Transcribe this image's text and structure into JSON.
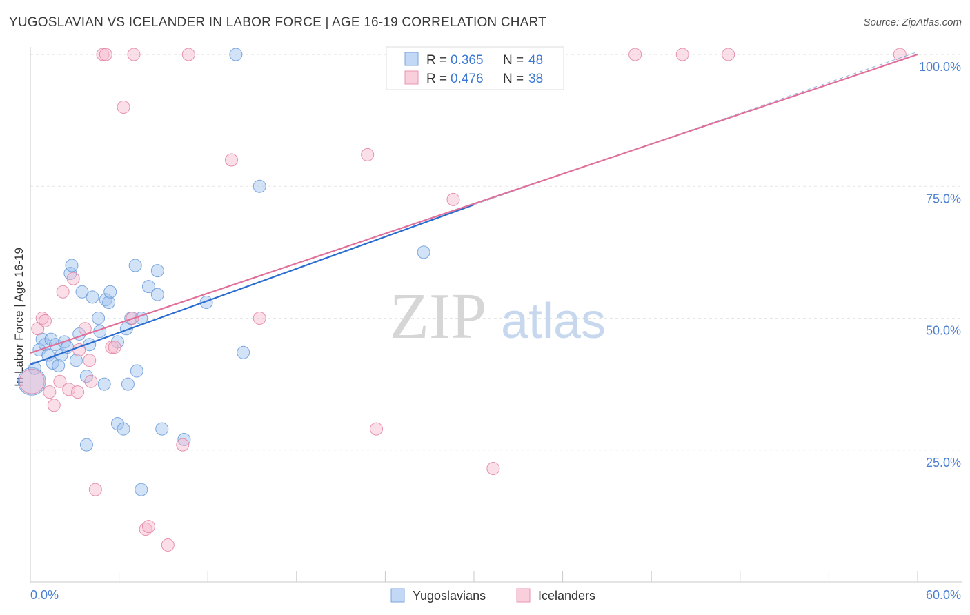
{
  "title": "YUGOSLAVIAN VS ICELANDER IN LABOR FORCE | AGE 16-19 CORRELATION CHART",
  "source": "Source: ZipAtlas.com",
  "watermark": {
    "zip": "ZIP",
    "atlas": "atlas"
  },
  "colors": {
    "blue": "#9ec2ee",
    "blue_stroke": "#5f93d8",
    "blue_line": "#2a6ccf",
    "pink": "#f6b8cc",
    "pink_stroke": "#e07a9b",
    "pink_line": "#e0709a",
    "tick_label": "#4a7fd0"
  },
  "chart_data": {
    "type": "scatter",
    "title": "YUGOSLAVIAN VS ICELANDER IN LABOR FORCE | AGE 16-19 CORRELATION CHART",
    "xlabel": "",
    "ylabel": "In Labor Force | Age 16-19",
    "xlim": [
      0,
      60
    ],
    "ylim": [
      0,
      102
    ],
    "x_tick_labels": [
      "0.0%",
      "60.0%"
    ],
    "y_ticks": [
      25,
      50,
      75,
      100
    ],
    "y_tick_labels": [
      "25.0%",
      "50.0%",
      "75.0%",
      "100.0%"
    ],
    "grid": true,
    "legend": {
      "placement": "top-center",
      "entries": [
        {
          "r_label": "R = ",
          "r_value": "0.365",
          "n_label": "N = ",
          "n_value": "48"
        },
        {
          "r_label": "R = ",
          "r_value": "0.476",
          "n_label": "N = ",
          "n_value": "38"
        }
      ]
    },
    "bottom_legend": [
      "Yugoslavians",
      "Icelanders"
    ],
    "series": [
      {
        "name": "Yugoslavians",
        "trend": {
          "x0": 0,
          "y0": 41.2,
          "x1": 30,
          "y1": 71.5
        },
        "points": [
          [
            0.1,
            38,
            20
          ],
          [
            0.3,
            40.5,
            9
          ],
          [
            0.6,
            44,
            9
          ],
          [
            0.8,
            46,
            9
          ],
          [
            1.0,
            45,
            9
          ],
          [
            1.2,
            43,
            9
          ],
          [
            1.4,
            46,
            9
          ],
          [
            1.5,
            41.5,
            9
          ],
          [
            1.7,
            45,
            9
          ],
          [
            1.9,
            41,
            9
          ],
          [
            2.1,
            43,
            9
          ],
          [
            2.3,
            45.5,
            9
          ],
          [
            2.5,
            44.5,
            9
          ],
          [
            3.1,
            42,
            9
          ],
          [
            3.3,
            47,
            9
          ],
          [
            2.7,
            58.5,
            9
          ],
          [
            2.8,
            60,
            9
          ],
          [
            3.5,
            55,
            9
          ],
          [
            3.8,
            39,
            9
          ],
          [
            3.8,
            26,
            9
          ],
          [
            4.0,
            45,
            9
          ],
          [
            4.2,
            54,
            9
          ],
          [
            4.6,
            50,
            9
          ],
          [
            4.7,
            47.5,
            9
          ],
          [
            5.0,
            37.5,
            9
          ],
          [
            5.1,
            53.5,
            9
          ],
          [
            5.3,
            53,
            9
          ],
          [
            5.4,
            55,
            9
          ],
          [
            5.9,
            45.5,
            9
          ],
          [
            5.9,
            30,
            9
          ],
          [
            6.3,
            29,
            9
          ],
          [
            6.5,
            48,
            9
          ],
          [
            6.6,
            37.5,
            9
          ],
          [
            6.8,
            50,
            9
          ],
          [
            7.1,
            60,
            9
          ],
          [
            7.2,
            40,
            9
          ],
          [
            7.5,
            50,
            9
          ],
          [
            7.5,
            17.5,
            9
          ],
          [
            8.0,
            56,
            9
          ],
          [
            8.6,
            54.5,
            9
          ],
          [
            8.6,
            59,
            9
          ],
          [
            8.9,
            29,
            9
          ],
          [
            10.4,
            27,
            9
          ],
          [
            11.9,
            53,
            9
          ],
          [
            13.9,
            100,
            9
          ],
          [
            14.4,
            43.5,
            9
          ],
          [
            15.5,
            75,
            9
          ],
          [
            26.6,
            62.5,
            9
          ]
        ]
      },
      {
        "name": "Icelanders",
        "trend": {
          "x0": 0,
          "y0": 43.4,
          "x1": 60,
          "y1": 100
        },
        "dashed_extension": {
          "x0": 30,
          "y0": 71.5,
          "x1": 60,
          "y1": 100.5
        },
        "points": [
          [
            0.1,
            38,
            18
          ],
          [
            0.5,
            48,
            9
          ],
          [
            0.8,
            50,
            9
          ],
          [
            1.0,
            49.5,
            9
          ],
          [
            1.3,
            36,
            9
          ],
          [
            1.6,
            33.5,
            9
          ],
          [
            2.0,
            38,
            9
          ],
          [
            2.2,
            55,
            9
          ],
          [
            2.6,
            36.5,
            9
          ],
          [
            2.9,
            57.5,
            9
          ],
          [
            3.2,
            36,
            9
          ],
          [
            3.3,
            44,
            9
          ],
          [
            3.7,
            48,
            9
          ],
          [
            4.0,
            42,
            9
          ],
          [
            4.1,
            38,
            9
          ],
          [
            4.4,
            17.5,
            9
          ],
          [
            4.9,
            100,
            9
          ],
          [
            5.1,
            100,
            9
          ],
          [
            5.5,
            44.5,
            9
          ],
          [
            5.7,
            44.5,
            9
          ],
          [
            6.3,
            90,
            9
          ],
          [
            6.9,
            50,
            9
          ],
          [
            7.0,
            100,
            9
          ],
          [
            7.8,
            10,
            9
          ],
          [
            8.0,
            10.5,
            9
          ],
          [
            9.3,
            7,
            9
          ],
          [
            10.3,
            26,
            9
          ],
          [
            10.7,
            100,
            9
          ],
          [
            13.6,
            80,
            9
          ],
          [
            15.5,
            50,
            9
          ],
          [
            22.8,
            81,
            9
          ],
          [
            23.4,
            29,
            9
          ],
          [
            28.6,
            72.5,
            9
          ],
          [
            31.3,
            21.5,
            9
          ],
          [
            40.9,
            100,
            9
          ],
          [
            44.1,
            100,
            9
          ],
          [
            47.2,
            100,
            9
          ],
          [
            58.8,
            100,
            9
          ]
        ]
      }
    ]
  }
}
